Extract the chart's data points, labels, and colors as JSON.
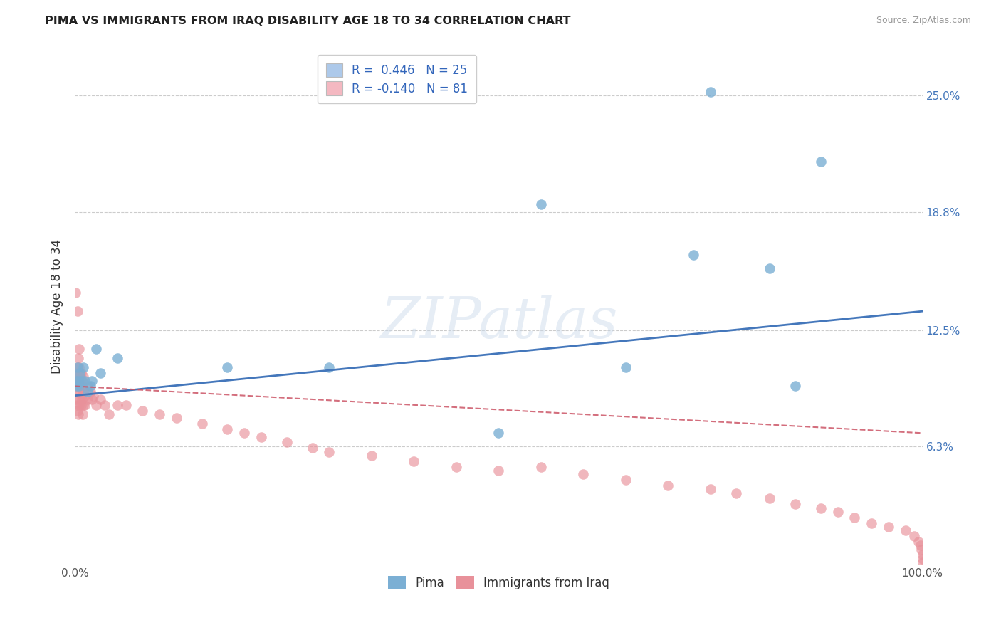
{
  "title": "PIMA VS IMMIGRANTS FROM IRAQ DISABILITY AGE 18 TO 34 CORRELATION CHART",
  "source": "Source: ZipAtlas.com",
  "ylabel": "Disability Age 18 to 34",
  "xlim": [
    0,
    100
  ],
  "ylim": [
    0,
    27.5
  ],
  "yticks": [
    0,
    6.3,
    12.5,
    18.8,
    25.0
  ],
  "ytick_labels_left": [
    "",
    "",
    "",
    "",
    ""
  ],
  "ytick_labels_right": [
    "",
    "6.3%",
    "12.5%",
    "18.8%",
    "25.0%"
  ],
  "xtick_vals": [
    0,
    25,
    50,
    75,
    100
  ],
  "xtick_labels": [
    "0.0%",
    "",
    "",
    "",
    "100.0%"
  ],
  "legend_label1": "R =  0.446   N = 25",
  "legend_label2": "R = -0.140   N = 81",
  "legend_color1": "#adc9ea",
  "legend_color2": "#f4b8c1",
  "pima_color": "#7bafd4",
  "iraq_color": "#e8919a",
  "pima_line_color": "#4477bb",
  "iraq_line_color": "#cc5566",
  "background_color": "#ffffff",
  "grid_color": "#cccccc",
  "watermark": "ZIPatlas",
  "pima_x": [
    75.0,
    88.0,
    55.0,
    73.0,
    82.0,
    65.0,
    85.0,
    50.0,
    30.0,
    18.0,
    5.0,
    3.0,
    2.5,
    2.0,
    1.8,
    1.5,
    1.2,
    1.0,
    0.8,
    0.6,
    0.5,
    0.4,
    0.3,
    0.2,
    0.1
  ],
  "pima_y": [
    25.2,
    21.5,
    19.2,
    16.5,
    15.8,
    10.5,
    9.5,
    7.0,
    10.5,
    10.5,
    11.0,
    10.2,
    11.5,
    9.8,
    9.5,
    9.2,
    9.8,
    10.5,
    9.8,
    10.2,
    9.5,
    9.8,
    10.5,
    9.5,
    9.8
  ],
  "iraq_x": [
    0.1,
    0.1,
    0.1,
    0.1,
    0.1,
    0.2,
    0.2,
    0.2,
    0.2,
    0.3,
    0.3,
    0.3,
    0.3,
    0.4,
    0.4,
    0.4,
    0.5,
    0.5,
    0.5,
    0.5,
    0.6,
    0.6,
    0.6,
    0.7,
    0.7,
    0.7,
    0.8,
    0.8,
    0.9,
    0.9,
    1.0,
    1.0,
    1.0,
    1.2,
    1.2,
    1.5,
    1.5,
    1.8,
    2.0,
    2.2,
    2.5,
    3.0,
    3.5,
    4.0,
    5.0,
    6.0,
    8.0,
    10.0,
    12.0,
    15.0,
    18.0,
    20.0,
    22.0,
    25.0,
    28.0,
    30.0,
    35.0,
    40.0,
    45.0,
    50.0,
    55.0,
    60.0,
    65.0,
    70.0,
    75.0,
    78.0,
    82.0,
    85.0,
    88.0,
    90.0,
    92.0,
    94.0,
    96.0,
    98.0,
    99.0,
    99.5,
    99.8,
    99.9,
    100.0,
    100.0,
    100.0
  ],
  "iraq_y": [
    9.5,
    9.8,
    10.2,
    8.8,
    14.5,
    9.5,
    10.0,
    8.5,
    9.2,
    9.8,
    10.5,
    13.5,
    8.2,
    9.5,
    11.0,
    8.0,
    9.8,
    10.5,
    8.5,
    11.5,
    9.2,
    10.0,
    8.8,
    9.5,
    8.5,
    10.2,
    9.0,
    8.8,
    9.5,
    8.0,
    9.2,
    10.0,
    8.5,
    9.0,
    8.5,
    9.5,
    8.8,
    9.2,
    8.8,
    9.0,
    8.5,
    8.8,
    8.5,
    8.0,
    8.5,
    8.5,
    8.2,
    8.0,
    7.8,
    7.5,
    7.2,
    7.0,
    6.8,
    6.5,
    6.2,
    6.0,
    5.8,
    5.5,
    5.2,
    5.0,
    5.2,
    4.8,
    4.5,
    4.2,
    4.0,
    3.8,
    3.5,
    3.2,
    3.0,
    2.8,
    2.5,
    2.2,
    2.0,
    1.8,
    1.5,
    1.2,
    1.0,
    0.8,
    0.5,
    0.3,
    0.1
  ]
}
